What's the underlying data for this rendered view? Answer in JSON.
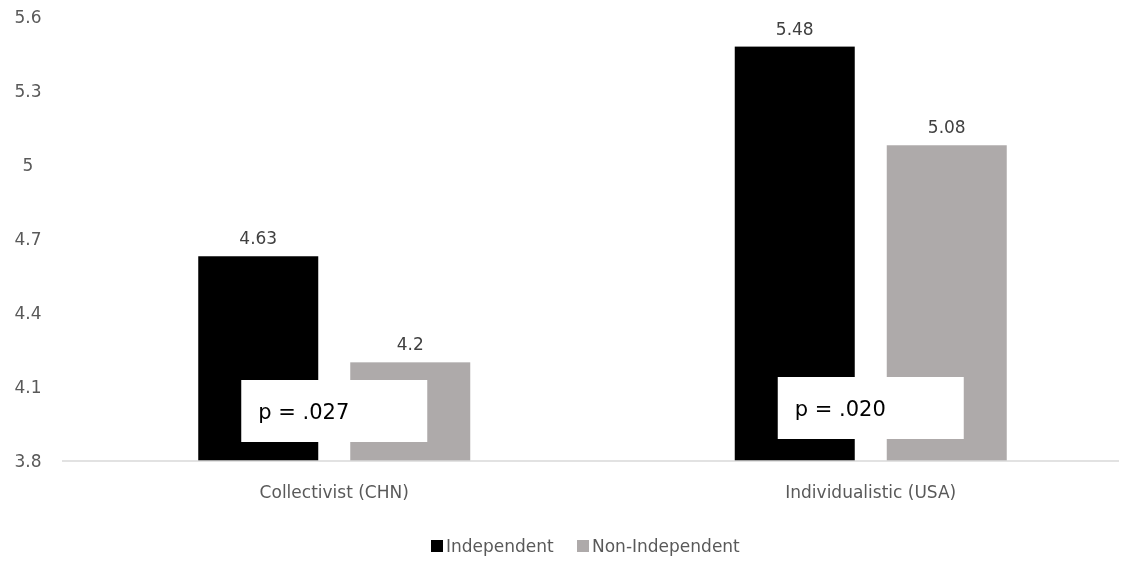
{
  "chart_data": {
    "type": "bar",
    "categories": [
      "Collectivist (CHN)",
      "Individualistic (USA)"
    ],
    "series": [
      {
        "name": "Independent",
        "color": "#000000",
        "values": [
          4.63,
          5.48
        ]
      },
      {
        "name": "Non-Independent",
        "color": "#aeaaaa",
        "values": [
          4.2,
          5.08
        ]
      }
    ],
    "ylim": [
      3.8,
      5.6
    ],
    "yticks": [
      3.8,
      4.1,
      4.4,
      4.7,
      5,
      5.3,
      5.6
    ],
    "data_labels": true,
    "legend": "bottom",
    "annotations": [
      "p = .027",
      "p = .020"
    ]
  }
}
